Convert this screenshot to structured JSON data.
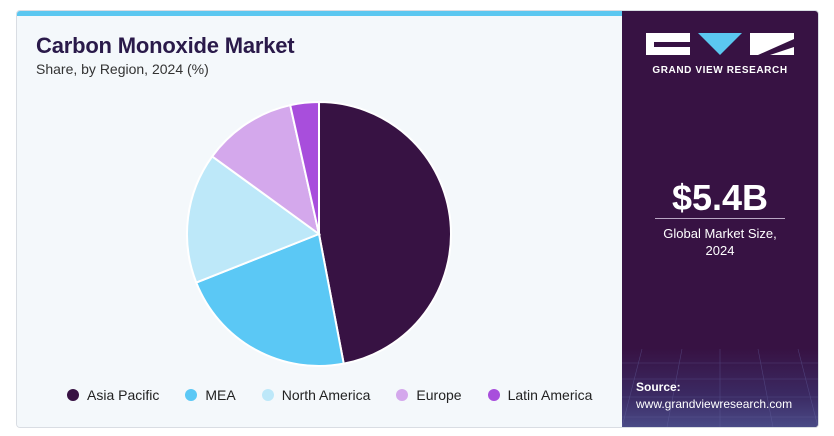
{
  "header": {
    "title": "Carbon Monoxide Market",
    "subtitle": "Share, by Region, 2024 (%)"
  },
  "chart_data": {
    "type": "pie",
    "title": "Carbon Monoxide Market",
    "subtitle": "Share, by Region, 2024 (%)",
    "categories": [
      "Asia Pacific",
      "MEA",
      "North America",
      "Europe",
      "Latin America"
    ],
    "values": [
      47.0,
      22.0,
      16.0,
      11.5,
      3.5
    ],
    "colors": [
      "#371243",
      "#5bc8f5",
      "#bde8f9",
      "#d4a8ec",
      "#a84edc"
    ],
    "legend_position": "bottom"
  },
  "sidebar": {
    "brand": "GRAND VIEW RESEARCH",
    "logo_icon": "gvr-logo-icon",
    "market_size": "$5.4B",
    "market_size_label_line1": "Global Market Size,",
    "market_size_label_line2": "2024",
    "source_label": "Source:",
    "source_url": "www.grandviewresearch.com"
  }
}
